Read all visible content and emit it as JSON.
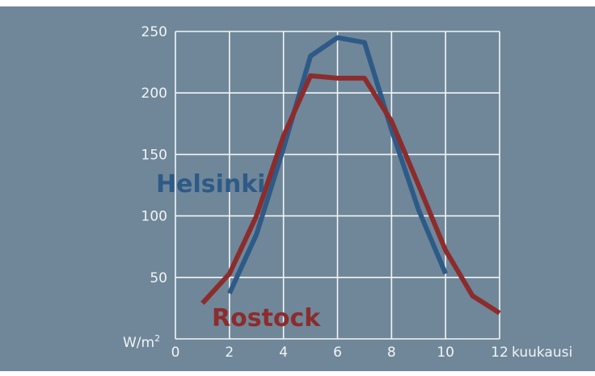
{
  "chart_data": {
    "type": "line",
    "xlabel": "kuukausi",
    "ylabel_prefix": "W/m",
    "ylabel_sup": "2",
    "xlim": [
      0,
      12
    ],
    "ylim": [
      0,
      250
    ],
    "x_ticks": [
      "0",
      "2",
      "4",
      "6",
      "8",
      "10",
      "12"
    ],
    "y_ticks": [
      "50",
      "100",
      "150",
      "200",
      "250"
    ],
    "grid": true,
    "series": [
      {
        "name": "Helsinki",
        "color": "#2e5a87",
        "x": [
          2,
          3,
          4,
          5,
          6,
          7,
          8,
          9,
          10
        ],
        "y": [
          37,
          85,
          155,
          230,
          245,
          241,
          170,
          105,
          53
        ]
      },
      {
        "name": "Rostock",
        "color": "#8c2c2c",
        "x": [
          1,
          2,
          3,
          4,
          5,
          6,
          7,
          8,
          9,
          10,
          11,
          12
        ],
        "y": [
          29,
          53,
          100,
          165,
          214,
          212,
          212,
          177,
          125,
          72,
          35,
          21
        ]
      }
    ]
  }
}
